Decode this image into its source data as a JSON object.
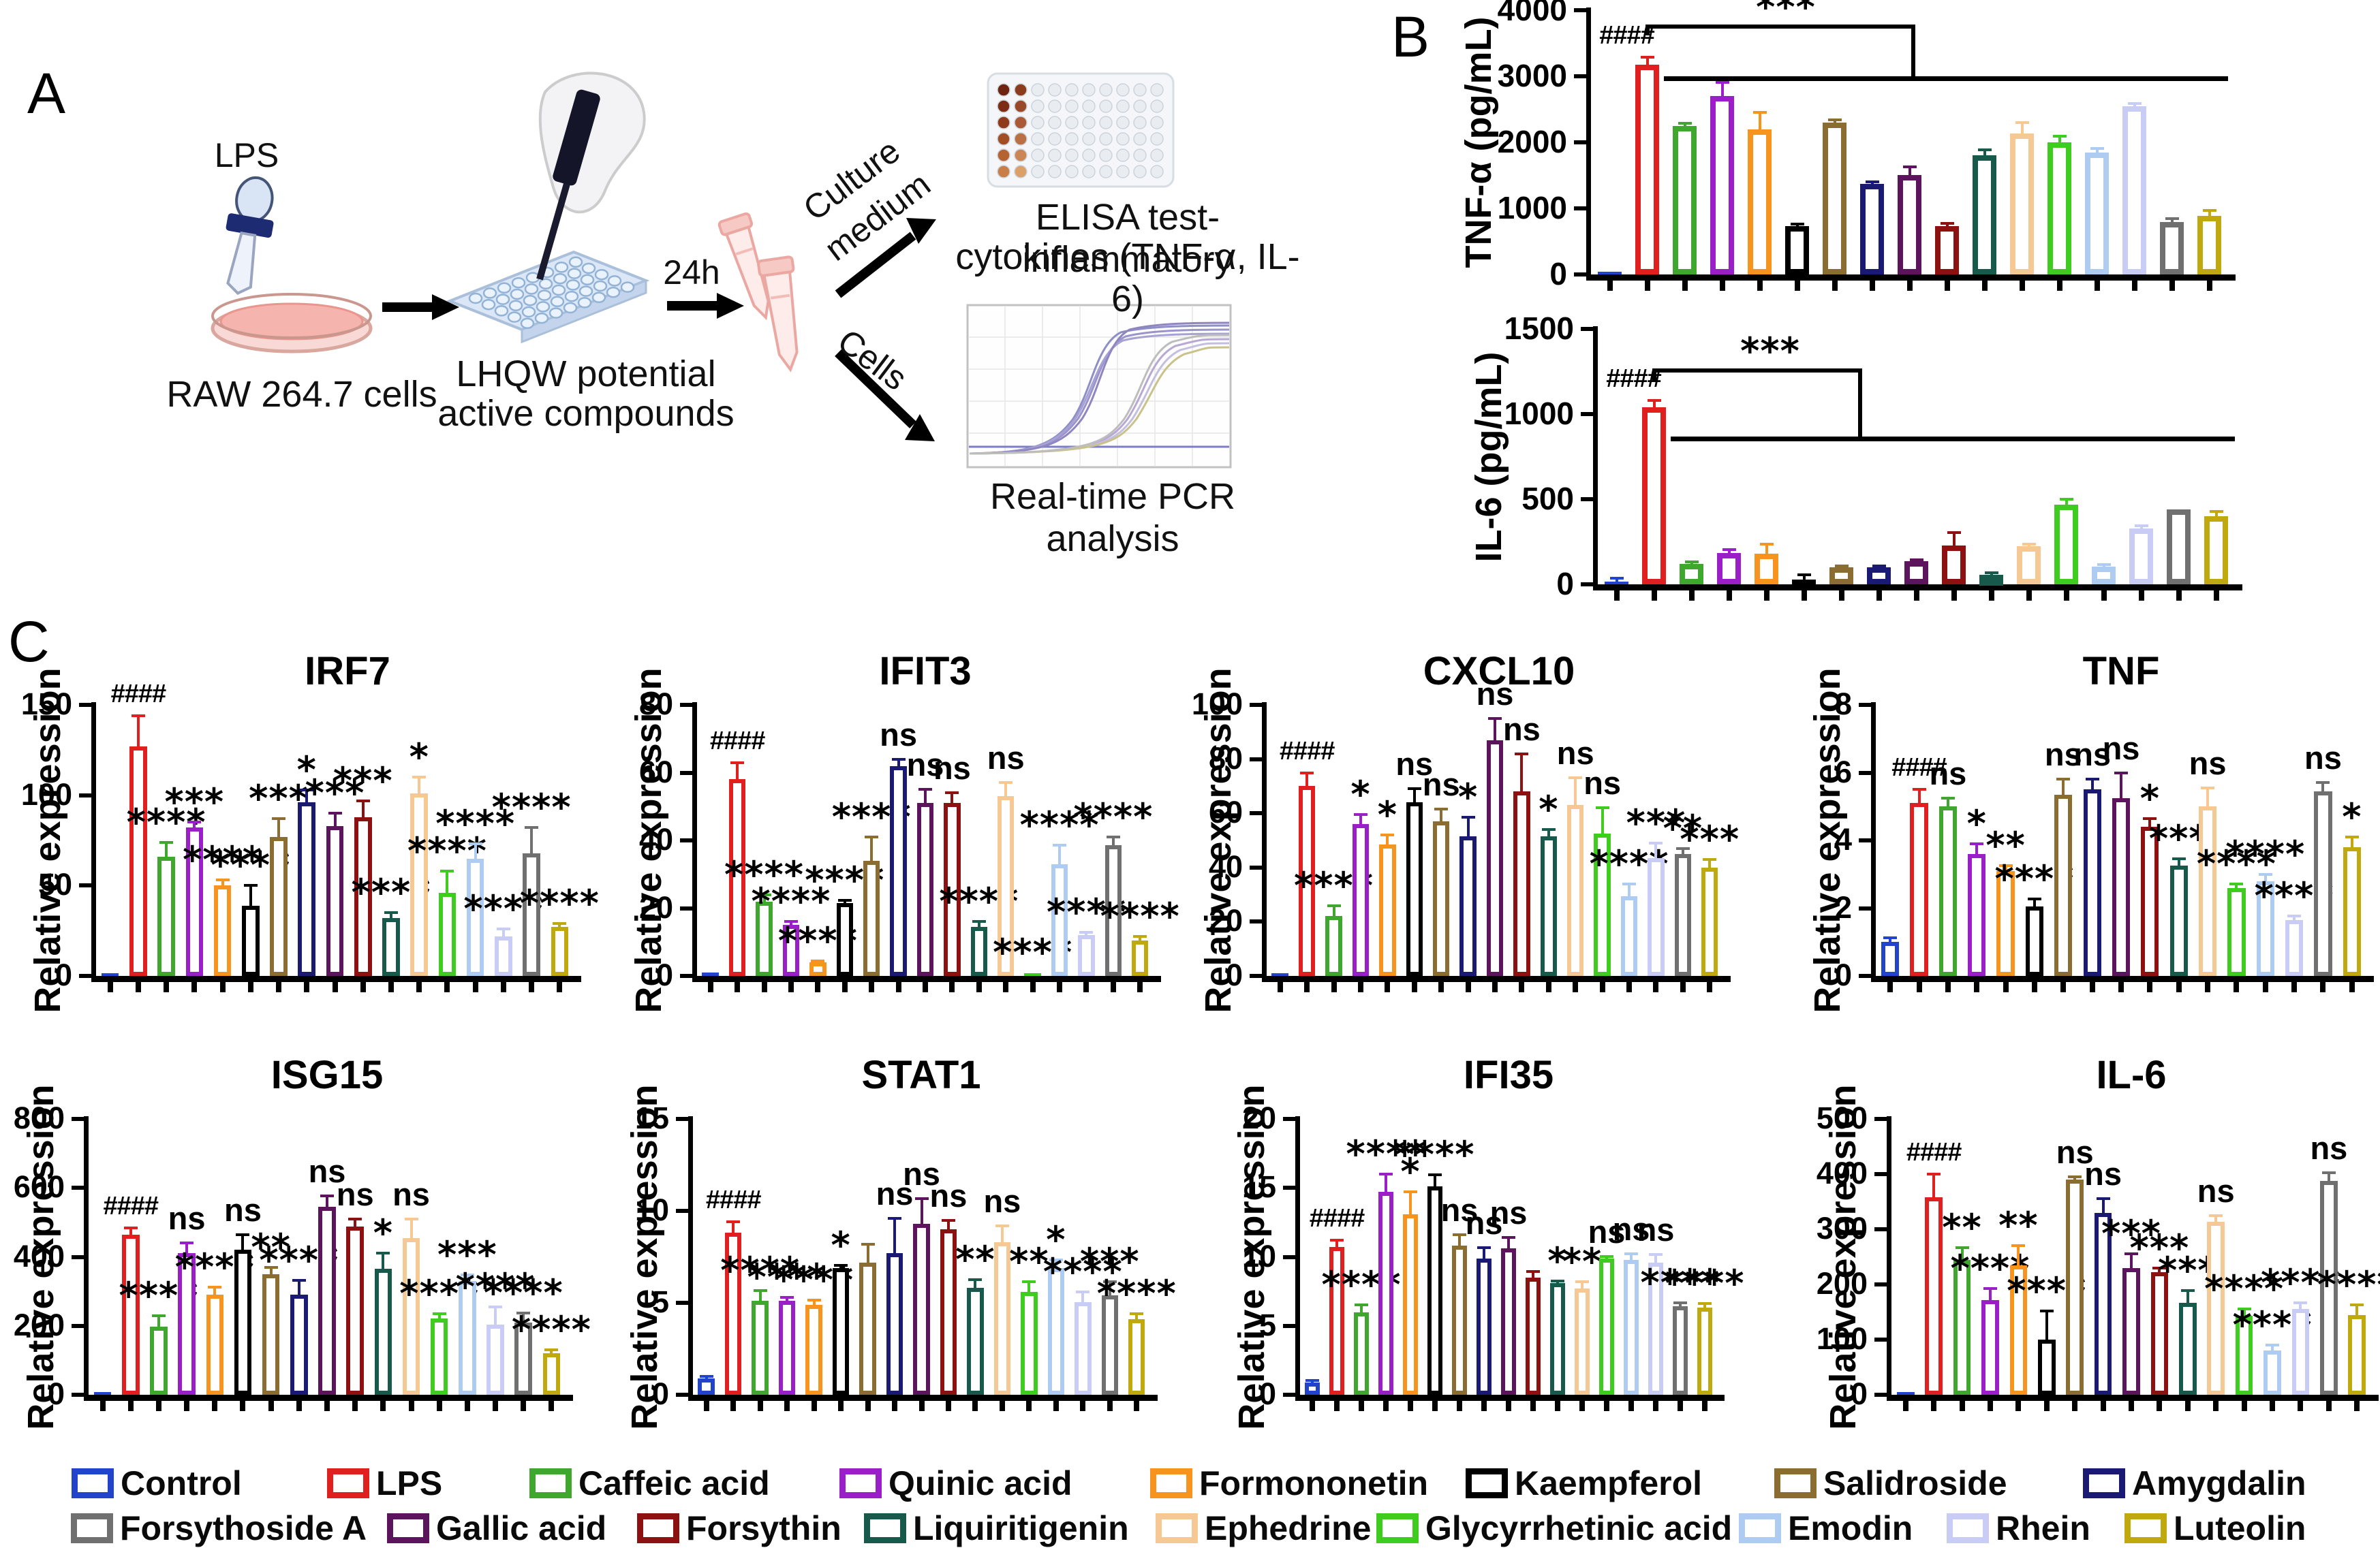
{
  "panels": {
    "a_label": "A",
    "b_label": "B",
    "c_label": "C"
  },
  "panel_a": {
    "lps_label": "LPS",
    "raw_cells_label": "RAW 264.7 cells",
    "compound_line1": "LHQW potential",
    "compound_line2": "active compounds",
    "duration_label": "24h",
    "culture_line1": "Culture",
    "culture_line2": "medium",
    "cells_label": "Cells",
    "elisa_line1": "ELISA test-inflammatory",
    "elisa_line2": "cytokines (TNF-α, IL-6)",
    "pcr_caption": "Real-time PCR analysis"
  },
  "chart_data": {
    "type": "bar",
    "categories": [
      "Control",
      "LPS",
      "Caffeic acid",
      "Quinic acid",
      "Formononetin",
      "Kaempferol",
      "Salidroside",
      "Amygdalin",
      "Gallic acid",
      "Forsythin",
      "Liquiritigenin",
      "Ephedrine",
      "Glycyrrhetinic acid",
      "Emodin",
      "Rhein",
      "Forsythoside A",
      "Luteolin"
    ],
    "colors": [
      "#2244CC",
      "#E01F1F",
      "#3FA62E",
      "#9B1FC8",
      "#F7941D",
      "#000000",
      "#8C6D31",
      "#1A1A75",
      "#5C155C",
      "#8E1111",
      "#17594A",
      "#F6C894",
      "#3ECC1F",
      "#AECBF2",
      "#C9CCF5",
      "#707070",
      "#C0A90E"
    ],
    "charts": [
      {
        "id": "tnfa_elisa",
        "panel": "B",
        "title": "",
        "ylabel": "TNF-α  (pg/mL)",
        "ylim": [
          0,
          4000
        ],
        "yticks": [
          0,
          1000,
          2000,
          3000,
          4000
        ],
        "values": [
          30,
          3180,
          2250,
          2700,
          2200,
          730,
          2300,
          1370,
          1510,
          730,
          1800,
          2130,
          2000,
          1850,
          2550,
          790,
          890
        ],
        "errors": [
          10,
          110,
          40,
          210,
          250,
          30,
          40,
          30,
          120,
          40,
          90,
          170,
          90,
          60,
          40,
          60,
          80
        ],
        "sig": [
          "",
          "####",
          "",
          "",
          "",
          "",
          "",
          "",
          "",
          "",
          "",
          "",
          "",
          "",
          "",
          "",
          ""
        ],
        "bracket": {
          "star": "***",
          "from_slot": 1.5,
          "v_start": 3620,
          "v_top": 3780,
          "elbow_slot": 8.6,
          "v_line": 3000,
          "line_from_slot": 1.95,
          "line_to_slot": 17,
          "star_slot": 5.2
        }
      },
      {
        "id": "il6_elisa",
        "panel": "B",
        "title": "",
        "ylabel": "IL-6 (pg/mL)",
        "ylim": [
          0,
          1500
        ],
        "yticks": [
          0,
          500,
          1000,
          1500
        ],
        "values": [
          15,
          1040,
          120,
          185,
          180,
          30,
          100,
          100,
          135,
          230,
          55,
          225,
          470,
          105,
          330,
          440,
          400
        ],
        "errors": [
          20,
          40,
          12,
          20,
          55,
          25,
          10,
          10,
          10,
          75,
          12,
          10,
          30,
          10,
          15,
          8,
          30
        ],
        "sig": [
          "",
          "####",
          "",
          "",
          "",
          "",
          "",
          "",
          "",
          "",
          "",
          "",
          "",
          "",
          "",
          "",
          ""
        ],
        "bracket": {
          "star": "***",
          "from_slot": 1.5,
          "v_start": 1190,
          "v_top": 1270,
          "elbow_slot": 7.0,
          "v_line": 870,
          "line_from_slot": 1.95,
          "line_to_slot": 17,
          "star_slot": 4.6
        }
      },
      {
        "id": "irf7",
        "panel": "C",
        "title": "IRF7",
        "ylabel": "Relative expression",
        "ylim": [
          0,
          150
        ],
        "yticks": [
          0,
          50,
          100,
          150
        ],
        "values": [
          1,
          127,
          66,
          82,
          50,
          39,
          77,
          96,
          83,
          88,
          32,
          101,
          46,
          65,
          22,
          68,
          27
        ],
        "errors": [
          0.5,
          17,
          8,
          3,
          3,
          11,
          10,
          7,
          7,
          9,
          3,
          9,
          12,
          8,
          4,
          14,
          2
        ],
        "sig": [
          "",
          "####",
          "****",
          "***",
          "****",
          "****",
          "***",
          "*",
          "***",
          "***",
          "****",
          "*",
          "****",
          "****",
          "****",
          "****",
          "****"
        ]
      },
      {
        "id": "ifit3",
        "panel": "C",
        "title": "IFIT3",
        "ylabel": "Relative expression",
        "ylim": [
          0,
          80
        ],
        "yticks": [
          0,
          20,
          40,
          60,
          80
        ],
        "values": [
          1,
          58,
          22,
          15,
          4,
          21.5,
          34,
          62,
          51,
          51,
          14.5,
          53,
          0.8,
          33,
          12,
          38.5,
          10.5
        ],
        "errors": [
          0.3,
          5,
          2,
          1,
          0.5,
          0.8,
          7,
          2,
          4,
          3,
          1.5,
          4,
          0.3,
          5.5,
          0.8,
          2.5,
          1.2
        ],
        "sig": [
          "",
          "####",
          "****",
          "****",
          "****",
          "****",
          "****",
          "ns",
          "ns",
          "ns",
          "****",
          "ns",
          "****",
          "****",
          "****",
          "****",
          "****"
        ]
      },
      {
        "id": "cxcl10",
        "panel": "C",
        "title": "CXCL10",
        "ylabel": "Relative expression",
        "ylim": [
          0,
          100
        ],
        "yticks": [
          0,
          20,
          40,
          60,
          80,
          100
        ],
        "values": [
          0.8,
          70,
          22,
          56,
          48.5,
          64,
          57,
          51.5,
          87,
          68,
          51.5,
          63,
          52.5,
          29.5,
          43.5,
          45,
          40
        ],
        "errors": [
          0.3,
          5,
          4,
          3.5,
          3.5,
          5,
          4.5,
          7,
          8,
          14,
          2.5,
          10,
          9.5,
          4.5,
          5.5,
          2,
          3
        ],
        "sig": [
          "",
          "####",
          "****",
          "*",
          "*",
          "ns",
          "ns",
          "*",
          "ns",
          "ns",
          "*",
          "ns",
          "ns",
          "****",
          "***",
          "**",
          "***"
        ]
      },
      {
        "id": "tnf",
        "panel": "C",
        "title": "TNF",
        "ylabel": "Relative expression",
        "ylim": [
          0,
          8
        ],
        "yticks": [
          0,
          2,
          4,
          6,
          8
        ],
        "values": [
          1.0,
          5.1,
          5.0,
          3.6,
          3.1,
          2.05,
          5.35,
          5.5,
          5.25,
          4.4,
          3.25,
          5.0,
          2.6,
          2.8,
          1.65,
          5.45,
          3.8
        ],
        "errors": [
          0.12,
          0.4,
          0.25,
          0.3,
          0.15,
          0.22,
          0.45,
          0.3,
          0.75,
          0.25,
          0.2,
          0.55,
          0.12,
          0.2,
          0.12,
          0.25,
          0.3
        ],
        "sig": [
          "",
          "####",
          "ns",
          "*",
          "**",
          "****",
          "ns",
          "ns",
          "ns",
          "*",
          "***",
          "ns",
          "****",
          "****",
          "****",
          "ns",
          "*"
        ]
      },
      {
        "id": "isg15",
        "panel": "C",
        "title": "ISG15",
        "ylabel": "Relative expression",
        "ylim": [
          0,
          800
        ],
        "yticks": [
          0,
          200,
          400,
          600,
          800
        ],
        "values": [
          3,
          465,
          197,
          410,
          290,
          420,
          350,
          290,
          545,
          487,
          365,
          455,
          222,
          330,
          203,
          210,
          120
        ],
        "errors": [
          1,
          18,
          32,
          30,
          22,
          45,
          20,
          42,
          32,
          22,
          45,
          55,
          14,
          18,
          52,
          28,
          10
        ],
        "sig": [
          "",
          "####",
          "****",
          "ns",
          "****",
          "ns",
          "**",
          "****",
          "ns",
          "ns",
          "*",
          "ns",
          "****",
          "***",
          "****",
          "****",
          "****"
        ]
      },
      {
        "id": "stat1",
        "panel": "C",
        "title": "STAT1",
        "ylabel": "Relative expression",
        "ylim": [
          0,
          15
        ],
        "yticks": [
          0,
          5,
          10,
          15
        ],
        "values": [
          0.9,
          8.8,
          5.1,
          5.1,
          4.9,
          6.9,
          7.2,
          7.7,
          9.3,
          9.0,
          5.8,
          8.3,
          5.6,
          6.9,
          5.05,
          5.4,
          4.1
        ],
        "errors": [
          0.1,
          0.6,
          0.55,
          0.2,
          0.25,
          0.12,
          1.0,
          1.9,
          1.35,
          0.5,
          0.45,
          0.9,
          0.55,
          0.45,
          0.55,
          0.75,
          0.3
        ],
        "sig": [
          "",
          "####",
          "****",
          "****",
          "****",
          "*",
          "",
          "ns",
          "ns",
          "ns",
          "**",
          "ns",
          "**",
          "*",
          "****",
          "***",
          "****"
        ]
      },
      {
        "id": "ifi35",
        "panel": "C",
        "title": "IFI35",
        "ylabel": "Relative expression",
        "ylim": [
          0,
          20
        ],
        "yticks": [
          0,
          5,
          10,
          15,
          20
        ],
        "values": [
          0.9,
          10.7,
          6.0,
          14.7,
          13.1,
          15.1,
          10.8,
          9.9,
          10.6,
          8.5,
          8.1,
          7.7,
          9.9,
          9.8,
          9.6,
          6.4,
          6.3
        ],
        "errors": [
          0.15,
          0.5,
          0.5,
          1.3,
          1.6,
          0.85,
          0.8,
          0.75,
          0.8,
          0.45,
          0.15,
          0.5,
          0.12,
          0.4,
          0.55,
          0.25,
          0.3
        ],
        "sig": [
          "",
          "####",
          "****",
          "****",
          "*",
          "****",
          "ns",
          "ns",
          "ns",
          "",
          "*",
          "**",
          "ns",
          "ns",
          "ns",
          "****",
          "****"
        ]
      },
      {
        "id": "il6_pcr",
        "panel": "C",
        "title": "IL-6",
        "ylabel": "Relative expression",
        "ylim": [
          0,
          500
        ],
        "yticks": [
          0,
          100,
          200,
          300,
          400,
          500
        ],
        "values": [
          2,
          358,
          245,
          172,
          235,
          100,
          390,
          330,
          230,
          222,
          167,
          313,
          143,
          80,
          155,
          388,
          145
        ],
        "errors": [
          1,
          42,
          22,
          20,
          35,
          52,
          5,
          25,
          25,
          8,
          22,
          12,
          12,
          10,
          12,
          15,
          18
        ],
        "sig": [
          "",
          "####",
          "**",
          "****",
          "**",
          "****",
          "ns",
          "ns",
          "***",
          "***",
          "***",
          "ns",
          "****",
          "****",
          "****",
          "ns",
          "****"
        ]
      }
    ]
  },
  "legend": {
    "rows": [
      {
        "items": [
          {
            "label": "Control",
            "color": "#2244CC"
          },
          {
            "label": "LPS",
            "color": "#E01F1F"
          },
          {
            "label": "Caffeic acid",
            "color": "#3FA62E"
          },
          {
            "label": "Quinic acid",
            "color": "#9B1FC8"
          },
          {
            "label": "Formononetin",
            "color": "#F7941D"
          },
          {
            "label": "Kaempferol",
            "color": "#000000"
          },
          {
            "label": "Salidroside",
            "color": "#8C6D31"
          },
          {
            "label": "Amygdalin",
            "color": "#1A1A75"
          }
        ]
      },
      {
        "items": [
          {
            "label": "Forsythoside A",
            "color": "#707070"
          },
          {
            "label": "Gallic acid",
            "color": "#5C155C"
          },
          {
            "label": "Forsythin",
            "color": "#8E1111"
          },
          {
            "label": "Liquiritigenin",
            "color": "#17594A"
          },
          {
            "label": "Ephedrine",
            "color": "#F6C894"
          },
          {
            "label": "Glycyrrhetinic acid",
            "color": "#3ECC1F"
          },
          {
            "label": "Emodin",
            "color": "#AECBF2"
          },
          {
            "label": "Rhein",
            "color": "#C9CCF5"
          },
          {
            "label": "Luteolin",
            "color": "#C0A90E"
          }
        ]
      }
    ]
  }
}
